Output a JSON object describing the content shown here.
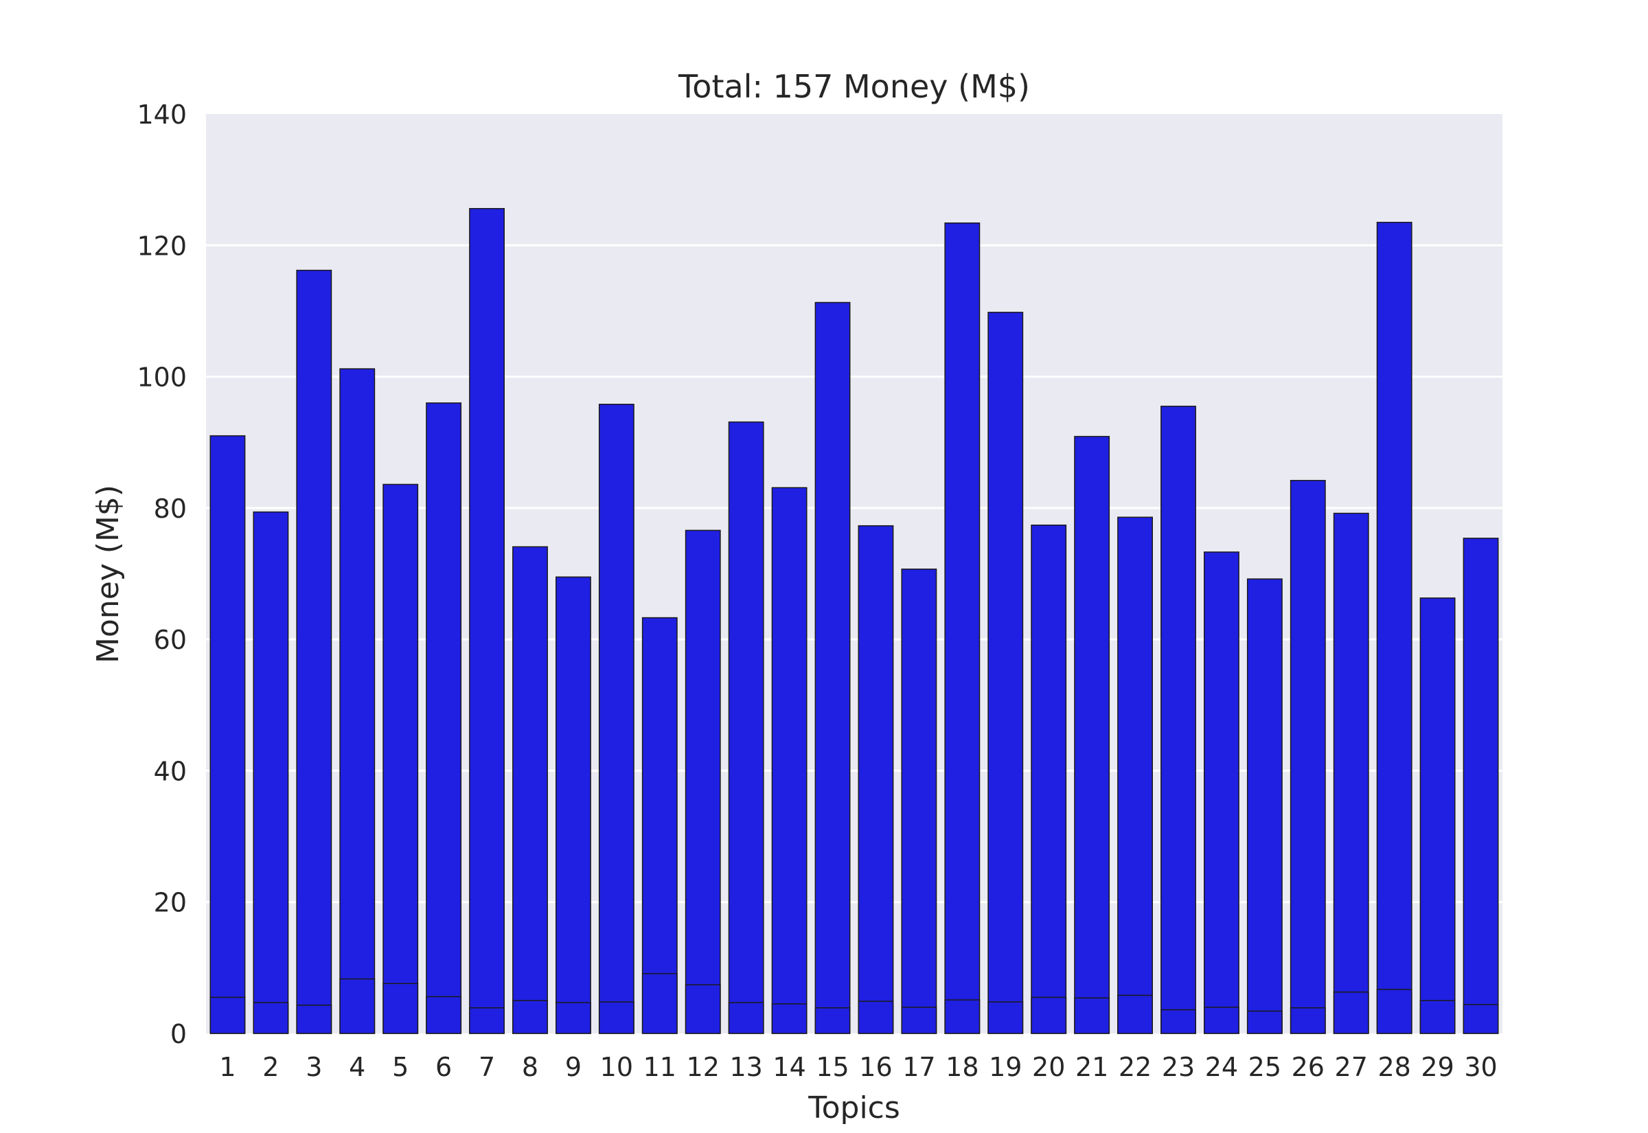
{
  "chart_data": {
    "type": "bar",
    "title": "Total: 157 Money (M$)",
    "xlabel": "Topics",
    "ylabel": "Money (M$)",
    "ylim": [
      0,
      140
    ],
    "yticks": [
      0,
      20,
      40,
      60,
      80,
      100,
      120,
      140
    ],
    "grid": true,
    "categories": [
      "1",
      "2",
      "3",
      "4",
      "5",
      "6",
      "7",
      "8",
      "9",
      "10",
      "11",
      "12",
      "13",
      "14",
      "15",
      "16",
      "17",
      "18",
      "19",
      "20",
      "21",
      "22",
      "23",
      "24",
      "25",
      "26",
      "27",
      "28",
      "29",
      "30"
    ],
    "series": [
      {
        "values": [
          91.0,
          79.4,
          116.2,
          101.2,
          83.6,
          96.0,
          125.6,
          74.1,
          69.5,
          95.8,
          63.3,
          76.6,
          93.1,
          83.1,
          111.3,
          77.3,
          70.7,
          123.4,
          109.8,
          77.4,
          90.9,
          78.6,
          95.5,
          73.3,
          69.2,
          84.2,
          79.2,
          123.5,
          66.3,
          75.4
        ]
      },
      {
        "values": [
          5.5,
          4.7,
          4.3,
          8.3,
          7.6,
          5.6,
          3.9,
          5.0,
          4.7,
          4.8,
          9.1,
          7.4,
          4.7,
          4.5,
          3.9,
          4.9,
          4.0,
          5.1,
          4.8,
          5.5,
          5.4,
          5.8,
          3.6,
          4.0,
          3.4,
          3.9,
          6.3,
          6.7,
          5.0,
          4.4
        ]
      }
    ],
    "colors": {
      "bar": "#2020e2",
      "plot_bg": "#eaeaf2",
      "grid": "#ffffff",
      "edge": "#1a1a1a",
      "text": "#262626"
    }
  }
}
